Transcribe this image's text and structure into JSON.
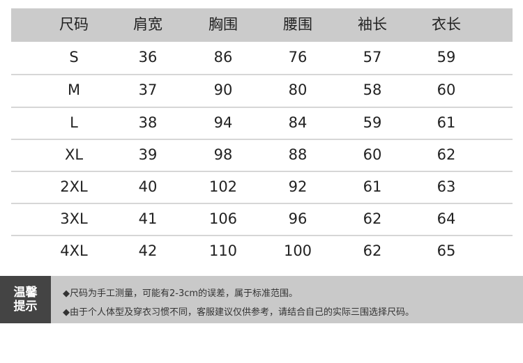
{
  "table": {
    "headers": [
      "尺码",
      "肩宽",
      "胸围",
      "腰围",
      "袖长",
      "衣长"
    ],
    "rows": [
      [
        "S",
        "36",
        "86",
        "76",
        "57",
        "59"
      ],
      [
        "M",
        "37",
        "90",
        "80",
        "58",
        "60"
      ],
      [
        "L",
        "38",
        "94",
        "84",
        "59",
        "61"
      ],
      [
        "XL",
        "39",
        "98",
        "88",
        "60",
        "62"
      ],
      [
        "2XL",
        "40",
        "102",
        "92",
        "61",
        "63"
      ],
      [
        "3XL",
        "41",
        "106",
        "96",
        "62",
        "64"
      ],
      [
        "4XL",
        "42",
        "110",
        "100",
        "62",
        "65"
      ]
    ]
  },
  "tips": {
    "label_line1": "温馨",
    "label_line2": "提示",
    "items": [
      "◆尺码为手工测量，可能有2-3cm的误差，属于标准范围。",
      "◆由于个人体型及穿衣习惯不同，客服建议仅供参考，请结合自己的实际三围选择尺码。"
    ]
  },
  "colors": {
    "header_bg": "#cbcbcb",
    "tips_bg": "#c9c9c9",
    "tips_label_bg": "#444444"
  }
}
